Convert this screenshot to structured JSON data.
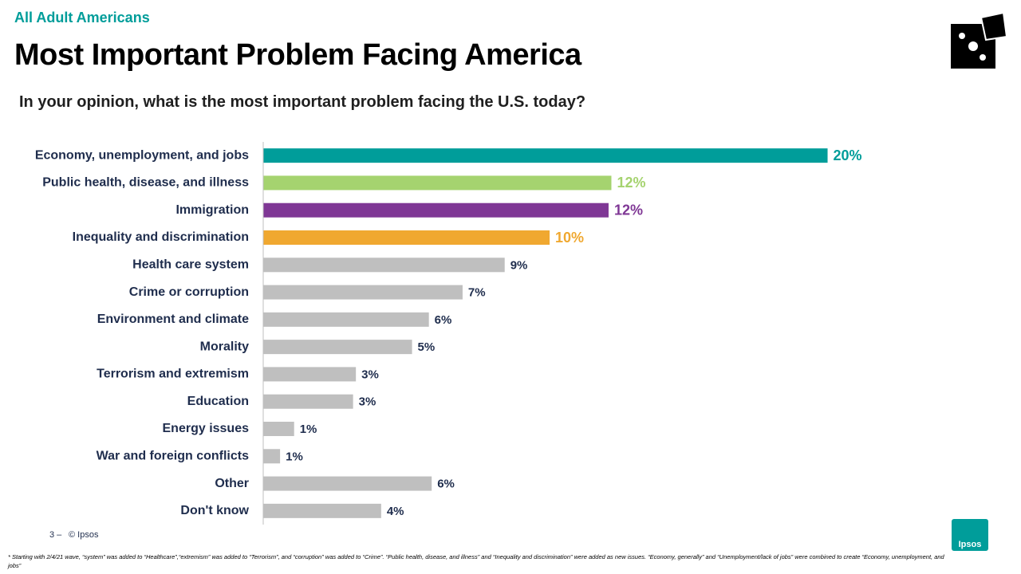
{
  "slide": {
    "kicker": "All Adult Americans",
    "page_number": "3 –",
    "copyright": "© Ipsos",
    "logo": "Ipsos",
    "footnote": "* Starting with 2/4/21 wave, “system” was added to “Healthcare”,“extremism” was added to “Terrorism”, and “corruption” was added to “Crime”. “Public health, disease, and illness” and “Inequality and discrimination” were added as new issues. “Economy, generally” and “Unemployment/lack of jobs” were combined to create “Economy, unemployment, and jobs”"
  },
  "chart_data": {
    "type": "hbar",
    "title": "Most Important Problem Facing America",
    "subtitle": "In your opinion, what is the most important problem facing the U.S. today?",
    "categories": [
      "Economy, unemployment, and jobs",
      "Public health, disease, and illness",
      "Immigration",
      "Inequality and discrimination",
      "Health care system",
      "Crime or corruption",
      "Environment and climate",
      "Morality",
      "Terrorism and extremism",
      "Education",
      "Energy issues",
      "War and foreign conflicts",
      "Other",
      "Don't know"
    ],
    "values": [
      20.1,
      12.4,
      12.3,
      10.2,
      8.6,
      7.1,
      5.9,
      5.3,
      3.3,
      3.2,
      1.1,
      0.6,
      6.0,
      4.2
    ],
    "value_labels": [
      "20%",
      "12%",
      "12%",
      "10%",
      "9%",
      "7%",
      "6%",
      "5%",
      "3%",
      "3%",
      "1%",
      "1%",
      "6%",
      "4%"
    ],
    "colors": [
      "#009d9a",
      "#a5d36f",
      "#7f3795",
      "#f0a830",
      "#bfbfbf",
      "#bfbfbf",
      "#bfbfbf",
      "#bfbfbf",
      "#bfbfbf",
      "#bfbfbf",
      "#bfbfbf",
      "#bfbfbf",
      "#bfbfbf",
      "#bfbfbf"
    ],
    "label_colors": [
      "#009d9a",
      "#a5d36f",
      "#7f3795",
      "#f0a830",
      "#1f2d4d",
      "#1f2d4d",
      "#1f2d4d",
      "#1f2d4d",
      "#1f2d4d",
      "#1f2d4d",
      "#1f2d4d",
      "#1f2d4d",
      "#1f2d4d",
      "#1f2d4d"
    ],
    "xlim": [
      0,
      25
    ],
    "grid": false
  }
}
